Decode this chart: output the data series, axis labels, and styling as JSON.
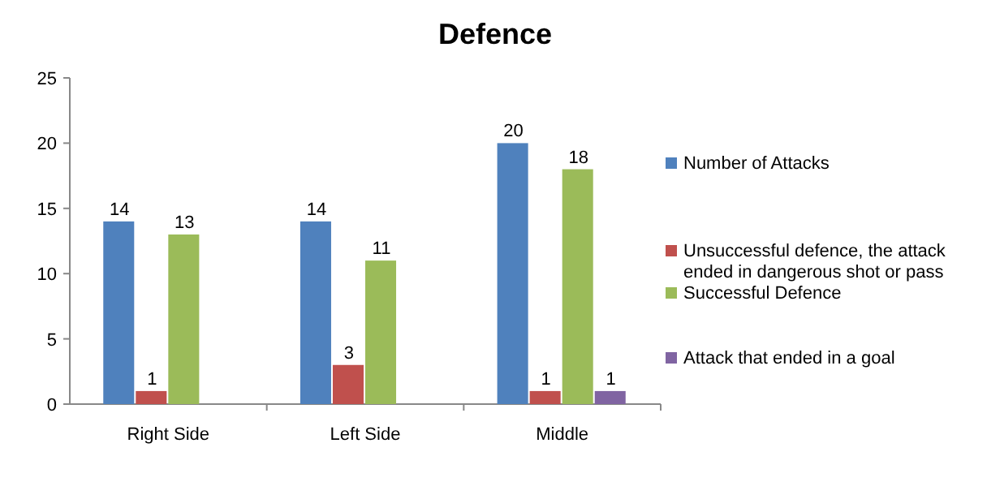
{
  "chart_data": {
    "type": "bar",
    "title": "Defence",
    "categories": [
      "Right Side",
      "Left Side",
      "Middle"
    ],
    "series": [
      {
        "name": "Number of Attacks",
        "color": "#4f81bd",
        "values": [
          14,
          14,
          20
        ]
      },
      {
        "name": "Unsuccessful defence, the attack ended in dangerous shot or pass",
        "color": "#c0504d",
        "values": [
          1,
          3,
          1
        ]
      },
      {
        "name": "Successful Defence",
        "color": "#9bbb59",
        "values": [
          13,
          11,
          18
        ]
      },
      {
        "name": "Attack that ended in a goal",
        "color": "#8064a2",
        "values": [
          null,
          null,
          1
        ]
      }
    ],
    "ylim": [
      0,
      25
    ],
    "yticks": [
      0,
      5,
      10,
      15,
      20,
      25
    ],
    "grid": false,
    "legend": "right",
    "data_labels": true
  }
}
